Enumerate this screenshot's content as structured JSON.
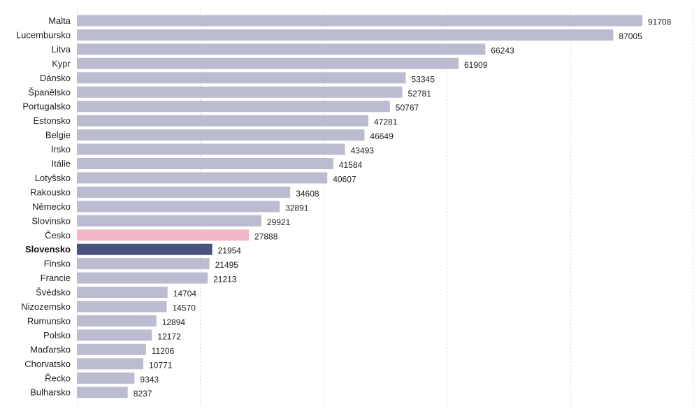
{
  "chart_data": {
    "type": "bar",
    "orientation": "horizontal",
    "title": "",
    "xlabel": "",
    "ylabel": "",
    "xlim": [
      0,
      100000
    ],
    "grid": true,
    "categories": [
      "Malta",
      "Lucembursko",
      "Litva",
      "Kypr",
      "Dánsko",
      "Španělsko",
      "Portugalsko",
      "Estonsko",
      "Belgie",
      "Irsko",
      "Itálie",
      "Lotyšsko",
      "Rakousko",
      "Německo",
      "Slovinsko",
      "Česko",
      "Slovensko",
      "Finsko",
      "Francie",
      "Švédsko",
      "Nizozemsko",
      "Rumunsko",
      "Polsko",
      "Maďarsko",
      "Chorvatsko",
      "Řecko",
      "Bulharsko"
    ],
    "values": [
      91708,
      87005,
      66243,
      61909,
      53345,
      52781,
      50767,
      47281,
      46649,
      43493,
      41584,
      40607,
      34608,
      32891,
      29921,
      27888,
      21954,
      21495,
      21213,
      14704,
      14570,
      12894,
      12172,
      11206,
      10771,
      9343,
      8237
    ],
    "highlight": {
      "Česko": "#f2b8c8",
      "Slovensko": "#4b5280"
    },
    "bold_categories": [
      "Slovensko"
    ],
    "colors": {
      "default_bar": "#bcbcd0"
    }
  }
}
